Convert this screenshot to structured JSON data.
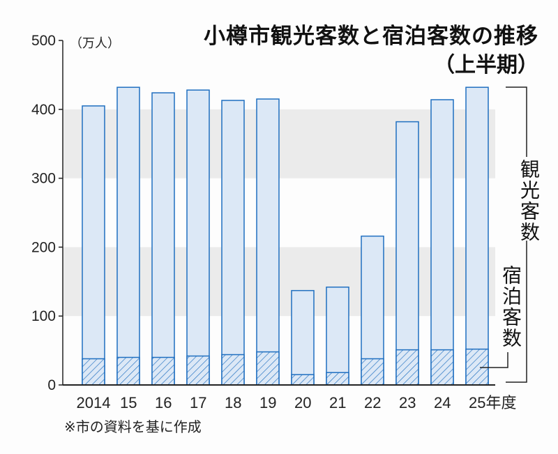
{
  "chart_data": {
    "type": "bar",
    "title": "小樽市観光客数と宿泊客数の推移",
    "subtitle": "（上半期）",
    "ylabel": "（万人）",
    "xlabel_suffix": "年度",
    "categories": [
      "2014",
      "15",
      "16",
      "17",
      "18",
      "19",
      "20",
      "21",
      "22",
      "23",
      "24",
      "25年度"
    ],
    "series": [
      {
        "name": "観光客数",
        "values": [
          405,
          432,
          424,
          428,
          413,
          415,
          137,
          142,
          216,
          382,
          414,
          432
        ]
      },
      {
        "name": "宿泊客数",
        "values": [
          38,
          40,
          40,
          42,
          44,
          48,
          15,
          18,
          38,
          51,
          51,
          52
        ]
      }
    ],
    "ylim": [
      0,
      500
    ],
    "yticks": [
      "0",
      "100",
      "200",
      "300",
      "400",
      "500"
    ],
    "bands": [
      [
        100,
        200
      ],
      [
        300,
        400
      ]
    ],
    "source": "※市の資料を基に作成",
    "colors": {
      "bar_fill": "#dce8f6",
      "bar_stroke": "#1f6fc0",
      "band": "#ebebeb"
    }
  }
}
